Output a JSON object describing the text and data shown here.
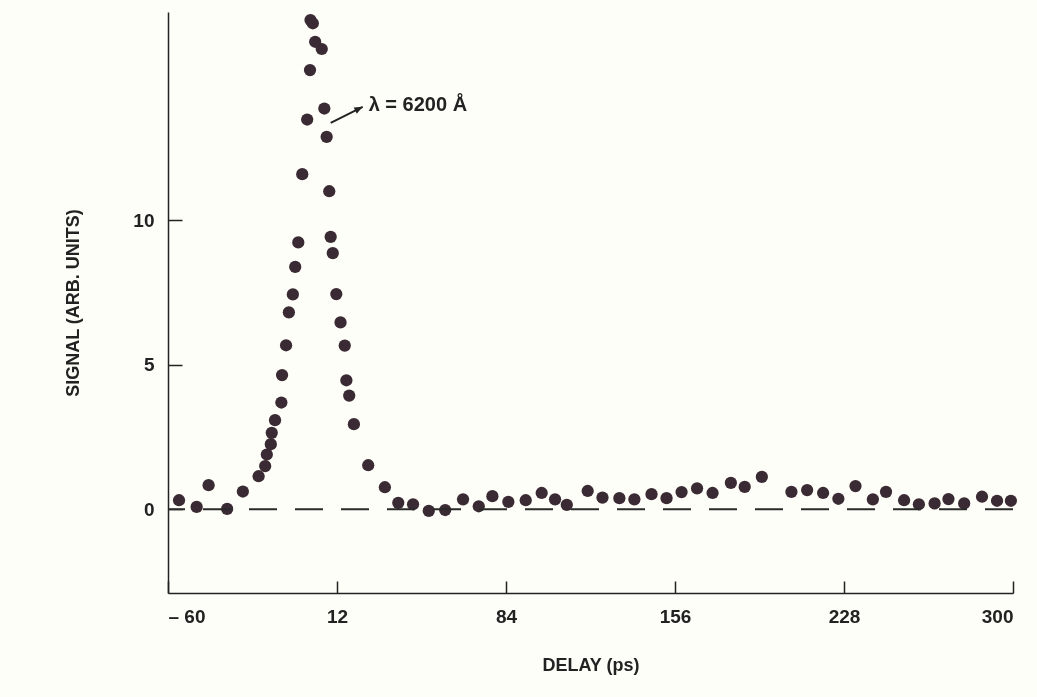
{
  "chart_data": {
    "type": "scatter",
    "xlabel": "DELAY (ps)",
    "ylabel": "SIGNAL (ARB. UNITS)",
    "xlim": [
      -60,
      300
    ],
    "ylim": [
      -2.9,
      17.2
    ],
    "xticks": [
      {
        "value": -60,
        "label": "– 60"
      },
      12,
      84,
      156,
      228,
      300
    ],
    "yticks": [
      0,
      5,
      10
    ],
    "grid": false,
    "marker": "circle",
    "ref_lines": [
      {
        "axis": "y",
        "value": 0,
        "line_style": "dashed",
        "color": "#2a2a2a"
      }
    ],
    "annotations": [
      {
        "text": "λ = 6200 Å",
        "x": 7.6,
        "y": 12.88
      }
    ],
    "series": [
      {
        "color": "#3a2a33",
        "x": [
          -55.3,
          -47.8,
          -42.7,
          -34.8,
          -28.1,
          -21.4,
          -18.6,
          -17.9,
          -16.2,
          -15.8,
          -14.4,
          -11.7,
          -11.4,
          -9.7,
          -8.5,
          -6.8,
          -5.8,
          -4.5,
          -2.8,
          -0.7,
          0.5,
          0.7,
          1.7,
          2.7,
          5.5,
          6.6,
          7.6,
          8.7,
          9.3,
          10.2,
          11.7,
          13.5,
          15.3,
          16.0,
          17.2,
          19.2,
          25.3,
          32.4,
          38.1,
          44.4,
          51.1,
          58.1,
          65.7,
          72.4,
          78.2,
          85.0,
          92.4,
          99.2,
          104.9,
          109.9,
          118.8,
          125.1,
          132.3,
          138.7,
          146.0,
          152.4,
          158.8,
          165.4,
          172.0,
          179.8,
          185.7,
          193.0,
          205.6,
          212.3,
          219.1,
          225.6,
          232.9,
          240.3,
          245.9,
          253.6,
          259.9,
          266.6,
          272.5,
          279.2,
          286.8,
          293.2,
          299.1
        ],
        "values": [
          0.31,
          0.08,
          0.83,
          0.01,
          0.61,
          1.14,
          1.49,
          1.89,
          2.25,
          2.64,
          3.08,
          3.69,
          4.64,
          5.67,
          6.81,
          7.43,
          8.38,
          9.23,
          11.59,
          13.48,
          15.19,
          16.92,
          16.81,
          16.17,
          15.92,
          13.86,
          12.88,
          11.0,
          9.42,
          8.86,
          7.44,
          6.46,
          5.66,
          4.46,
          3.93,
          2.94,
          1.52,
          0.76,
          0.22,
          0.17,
          -0.06,
          -0.03,
          0.34,
          0.1,
          0.45,
          0.25,
          0.31,
          0.56,
          0.34,
          0.15,
          0.63,
          0.4,
          0.38,
          0.34,
          0.52,
          0.38,
          0.59,
          0.72,
          0.56,
          0.91,
          0.77,
          1.12,
          0.6,
          0.66,
          0.56,
          0.36,
          0.8,
          0.34,
          0.6,
          0.31,
          0.17,
          0.2,
          0.35,
          0.2,
          0.43,
          0.29,
          0.29
        ]
      }
    ]
  }
}
